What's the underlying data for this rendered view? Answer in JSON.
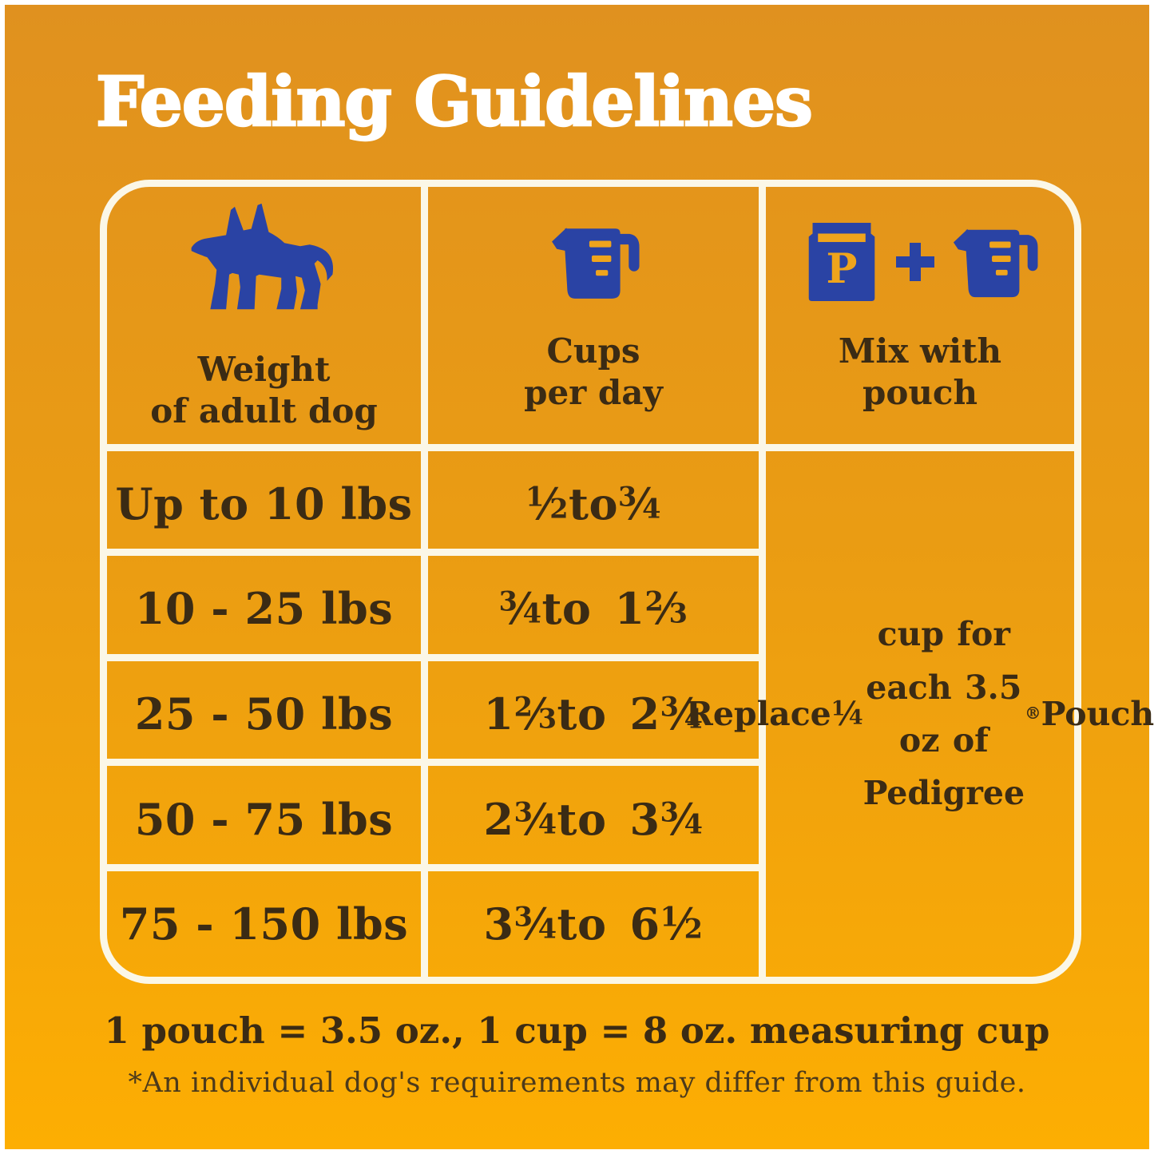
{
  "page": {
    "title": "Feeding Guidelines"
  },
  "table": {
    "headers": [
      {
        "icon": "dog-icon",
        "label": "Weight\nof adult dog"
      },
      {
        "icon": "measuring-cup-icon",
        "label": "Cups\nper day"
      },
      {
        "icon": "pouch-plus-cup-icon",
        "label": "Mix with\npouch"
      }
    ],
    "pouch_letter": "P",
    "rows": [
      {
        "weight": "Up to 10 lbs",
        "cups": "1/2 to 3/4"
      },
      {
        "weight": "10 - 25 lbs",
        "cups": "3/4 to 1 2/3"
      },
      {
        "weight": "25 - 50 lbs",
        "cups": "1 2/3 to 2 3/4"
      },
      {
        "weight": "50 - 75 lbs",
        "cups": "2 3/4 to 3 3/4"
      },
      {
        "weight": "75 - 150 lbs",
        "cups": "3 3/4 to 6 1/2"
      }
    ],
    "mix_note": "Replace 1/4 cup for each 3.5 oz of Pedigree® Pouch"
  },
  "footer": {
    "equivalence": "1 pouch = 3.5 oz., 1 cup = 8 oz. measuring cup",
    "disclaimer": "*An individual dog's requirements may differ from this guide."
  },
  "colors": {
    "background_top": "#e0911f",
    "background_bottom": "#fdae02",
    "icon_blue": "#2a43a4",
    "icon_yellow": "#efa41c",
    "grid_line": "#fbf7e7",
    "text_dark": "#3b2b14",
    "title_white": "#ffffff"
  }
}
